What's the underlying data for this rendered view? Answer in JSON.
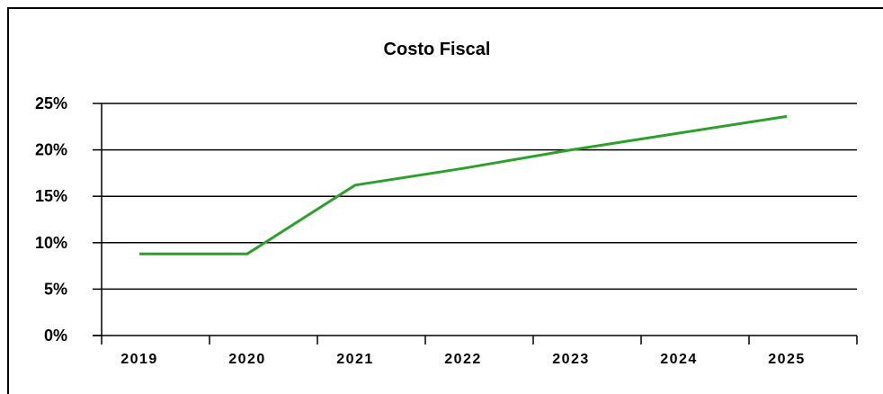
{
  "chart_data": {
    "type": "line",
    "title": "Costo Fiscal",
    "x": [
      "2019",
      "2020",
      "2021",
      "2022",
      "2023",
      "2024",
      "2025"
    ],
    "series": [
      {
        "color": "#2ca02c",
        "points": [
          {
            "x": 2019.15,
            "y": 8.8
          },
          {
            "x": 2020.15,
            "y": 8.8
          },
          {
            "x": 2021.15,
            "y": 16.2
          },
          {
            "x": 2022.15,
            "y": 18.0
          },
          {
            "x": 2023.15,
            "y": 20.0
          },
          {
            "x": 2024.15,
            "y": 21.8
          },
          {
            "x": 2025.15,
            "y": 23.6
          }
        ]
      }
    ],
    "y_ticks": [
      "0%",
      "5%",
      "10%",
      "15%",
      "20%",
      "25%"
    ],
    "y_tick_values": [
      0,
      5,
      10,
      15,
      20,
      25
    ],
    "ylim": [
      0,
      25
    ],
    "xlim": [
      2018.8,
      2025.8
    ],
    "grid": true,
    "legend": "none"
  }
}
